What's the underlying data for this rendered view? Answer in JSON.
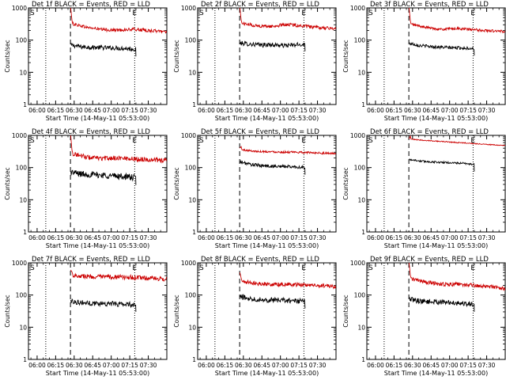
{
  "chart_data": [
    {
      "type": "line",
      "title": "Det 1f BLACK = Events, RED = LLD",
      "xlabel": "Start Time (14-May-11 05:53:00)",
      "ylabel": "Counts/sec",
      "yscale": "log",
      "ylim": [
        1,
        1000
      ],
      "yticks": [
        "1",
        "10",
        "100",
        "1000"
      ],
      "xticks": [
        "06:00",
        "06:15",
        "06:30",
        "06:45",
        "07:00",
        "07:15",
        "07:30"
      ],
      "xlim_minutes": [
        -7,
        105
      ],
      "marker_S": "S",
      "marker_E": "E",
      "dotted_lines_min": [
        7,
        79
      ],
      "dashed_line_min": 27,
      "series": [
        {
          "name": "BLACK = Events",
          "color": "#000000",
          "start": 27,
          "end": 80,
          "level": [
            70,
            62,
            60,
            58,
            57,
            55,
            52
          ],
          "noise": 0.07
        },
        {
          "name": "RED = LLD",
          "color": "#cc0000",
          "start": 27,
          "end": 105,
          "spike_from": 1000,
          "level": [
            330,
            250,
            210,
            205,
            215,
            195,
            185
          ],
          "noise": 0.05
        }
      ]
    },
    {
      "type": "line",
      "title": "Det 2f BLACK = Events, RED = LLD",
      "xlabel": "Start Time (14-May-11 05:53:00)",
      "ylabel": "Counts/sec",
      "yscale": "log",
      "ylim": [
        1,
        1000
      ],
      "yticks": [
        "1",
        "10",
        "100",
        "1000"
      ],
      "xticks": [
        "06:00",
        "06:15",
        "06:30",
        "06:45",
        "07:00",
        "07:15",
        "07:30"
      ],
      "xlim_minutes": [
        -7,
        105
      ],
      "marker_S": "S",
      "marker_E": "E",
      "dotted_lines_min": [
        7,
        79
      ],
      "dashed_line_min": 27,
      "series": [
        {
          "name": "BLACK = Events",
          "color": "#000000",
          "start": 27,
          "end": 80,
          "level": [
            80,
            75,
            70,
            72,
            68,
            70,
            75
          ],
          "noise": 0.07
        },
        {
          "name": "RED = LLD",
          "color": "#cc0000",
          "start": 27,
          "end": 105,
          "spike_from": 1000,
          "level": [
            340,
            280,
            265,
            310,
            270,
            240,
            230
          ],
          "noise": 0.05
        }
      ]
    },
    {
      "type": "line",
      "title": "Det 3f BLACK = Events, RED = LLD",
      "xlabel": "Start Time (14-May-11 05:53:00)",
      "ylabel": "Counts/sec",
      "yscale": "log",
      "ylim": [
        1,
        1000
      ],
      "yticks": [
        "1",
        "10",
        "100",
        "1000"
      ],
      "xticks": [
        "06:00",
        "06:15",
        "06:30",
        "06:45",
        "07:00",
        "07:15",
        "07:30"
      ],
      "xlim_minutes": [
        -7,
        105
      ],
      "marker_S": "S",
      "marker_E": "E",
      "dotted_lines_min": [
        7,
        79
      ],
      "dashed_line_min": 27,
      "series": [
        {
          "name": "BLACK = Events",
          "color": "#000000",
          "start": 27,
          "end": 80,
          "level": [
            80,
            68,
            63,
            60,
            58,
            57,
            55
          ],
          "noise": 0.05
        },
        {
          "name": "RED = LLD",
          "color": "#cc0000",
          "start": 27,
          "end": 105,
          "spike_from": 1000,
          "level": [
            320,
            250,
            215,
            230,
            210,
            195,
            185
          ],
          "noise": 0.04
        }
      ]
    },
    {
      "type": "line",
      "title": "Det 4f BLACK = Events, RED = LLD",
      "xlabel": "Start Time (14-May-11 05:53:00)",
      "ylabel": "Counts/sec",
      "yscale": "log",
      "ylim": [
        1,
        1000
      ],
      "yticks": [
        "1",
        "10",
        "100",
        "1000"
      ],
      "xticks": [
        "06:00",
        "06:15",
        "06:30",
        "06:45",
        "07:00",
        "07:15",
        "07:30"
      ],
      "xlim_minutes": [
        -7,
        105
      ],
      "marker_S": "S",
      "marker_E": "E",
      "dotted_lines_min": [
        7,
        79
      ],
      "dashed_line_min": 27,
      "series": [
        {
          "name": "BLACK = Events",
          "color": "#000000",
          "start": 27,
          "end": 80,
          "level": [
            72,
            63,
            60,
            58,
            55,
            52,
            48
          ],
          "noise": 0.1
        },
        {
          "name": "RED = LLD",
          "color": "#cc0000",
          "start": 27,
          "end": 105,
          "spike_from": 1000,
          "level": [
            280,
            210,
            190,
            200,
            185,
            175,
            165
          ],
          "noise": 0.07
        }
      ]
    },
    {
      "type": "line",
      "title": "Det 5f BLACK = Events, RED = LLD",
      "xlabel": "Start Time (14-May-11 05:53:00)",
      "ylabel": "Counts/sec",
      "yscale": "log",
      "ylim": [
        1,
        1000
      ],
      "yticks": [
        "1",
        "10",
        "100",
        "1000"
      ],
      "xticks": [
        "06:00",
        "06:15",
        "06:30",
        "06:45",
        "07:00",
        "07:15",
        "07:30"
      ],
      "xlim_minutes": [
        -7,
        105
      ],
      "marker_S": "S",
      "marker_E": "E",
      "dotted_lines_min": [
        7,
        79
      ],
      "dashed_line_min": 27,
      "series": [
        {
          "name": "BLACK = Events",
          "color": "#000000",
          "start": 27,
          "end": 80,
          "level": [
            150,
            125,
            115,
            110,
            108,
            105,
            100
          ],
          "noise": 0.05
        },
        {
          "name": "RED = LLD",
          "color": "#cc0000",
          "start": 27,
          "end": 105,
          "spike_from": 400,
          "level": [
            360,
            320,
            310,
            300,
            295,
            285,
            270
          ],
          "noise": 0.03
        }
      ]
    },
    {
      "type": "line",
      "title": "Det 6f BLACK = Events, RED = LLD",
      "xlabel": "Start Time (14-May-11 05:53:00)",
      "ylabel": "Counts/sec",
      "yscale": "log",
      "ylim": [
        1,
        1000
      ],
      "yticks": [
        "1",
        "10",
        "100",
        "1000"
      ],
      "xticks": [
        "06:00",
        "06:15",
        "06:30",
        "06:45",
        "07:00",
        "07:15",
        "07:30"
      ],
      "xlim_minutes": [
        -7,
        105
      ],
      "marker_S": "S",
      "marker_E": "E",
      "dotted_lines_min": [
        7,
        79
      ],
      "dashed_line_min": 27,
      "series": [
        {
          "name": "BLACK = Events",
          "color": "#000000",
          "start": 27,
          "end": 80,
          "level": [
            180,
            160,
            150,
            145,
            140,
            135,
            125
          ],
          "noise": 0.03
        },
        {
          "name": "RED = LLD",
          "color": "#cc0000",
          "start": 27,
          "end": 105,
          "spike_from": 780,
          "level": [
            760,
            700,
            650,
            600,
            560,
            520,
            480
          ],
          "noise": 0.015
        }
      ]
    },
    {
      "type": "line",
      "title": "Det 7f BLACK = Events, RED = LLD",
      "xlabel": "Start Time (14-May-11 05:53:00)",
      "ylabel": "Counts/sec",
      "yscale": "log",
      "ylim": [
        1,
        1000
      ],
      "yticks": [
        "1",
        "10",
        "100",
        "1000"
      ],
      "xticks": [
        "06:00",
        "06:15",
        "06:30",
        "06:45",
        "07:00",
        "07:15",
        "07:30"
      ],
      "xlim_minutes": [
        -7,
        105
      ],
      "marker_S": "S",
      "marker_E": "E",
      "dotted_lines_min": [
        7,
        79
      ],
      "dashed_line_min": 27,
      "series": [
        {
          "name": "BLACK = Events",
          "color": "#000000",
          "start": 27,
          "end": 80,
          "level": [
            65,
            58,
            55,
            55,
            53,
            52,
            50
          ],
          "noise": 0.08
        },
        {
          "name": "RED = LLD",
          "color": "#cc0000",
          "start": 27,
          "end": 105,
          "spike_from": 600,
          "level": [
            420,
            380,
            360,
            365,
            350,
            330,
            310
          ],
          "noise": 0.07
        }
      ]
    },
    {
      "type": "line",
      "title": "Det 8f BLACK = Events, RED = LLD",
      "xlabel": "Start Time (14-May-11 05:53:00)",
      "ylabel": "Counts/sec",
      "yscale": "log",
      "ylim": [
        1,
        1000
      ],
      "yticks": [
        "1",
        "10",
        "100",
        "1000"
      ],
      "xticks": [
        "06:00",
        "06:15",
        "06:30",
        "06:45",
        "07:00",
        "07:15",
        "07:30"
      ],
      "xlim_minutes": [
        -7,
        105
      ],
      "marker_S": "S",
      "marker_E": "E",
      "dotted_lines_min": [
        7,
        79
      ],
      "dashed_line_min": 27,
      "series": [
        {
          "name": "BLACK = Events",
          "color": "#000000",
          "start": 27,
          "end": 80,
          "level": [
            90,
            78,
            72,
            70,
            68,
            66,
            64
          ],
          "noise": 0.08
        },
        {
          "name": "RED = LLD",
          "color": "#cc0000",
          "start": 27,
          "end": 105,
          "spike_from": 500,
          "level": [
            270,
            230,
            215,
            215,
            205,
            195,
            180
          ],
          "noise": 0.06
        }
      ]
    },
    {
      "type": "line",
      "title": "Det 9f BLACK = Events, RED = LLD",
      "xlabel": "Start Time (14-May-11 05:53:00)",
      "ylabel": "Counts/sec",
      "yscale": "log",
      "ylim": [
        1,
        1000
      ],
      "yticks": [
        "1",
        "10",
        "100",
        "1000"
      ],
      "xticks": [
        "06:00",
        "06:15",
        "06:30",
        "06:45",
        "07:00",
        "07:15",
        "07:30"
      ],
      "xlim_minutes": [
        -7,
        105
      ],
      "marker_S": "S",
      "marker_E": "E",
      "dotted_lines_min": [
        7,
        79
      ],
      "dashed_line_min": 27,
      "series": [
        {
          "name": "BLACK = Events",
          "color": "#000000",
          "start": 27,
          "end": 80,
          "level": [
            75,
            65,
            62,
            60,
            58,
            55,
            50
          ],
          "noise": 0.08
        },
        {
          "name": "RED = LLD",
          "color": "#cc0000",
          "start": 27,
          "end": 105,
          "spike_from": 1000,
          "level": [
            330,
            250,
            215,
            215,
            200,
            180,
            160
          ],
          "noise": 0.06
        }
      ]
    }
  ]
}
